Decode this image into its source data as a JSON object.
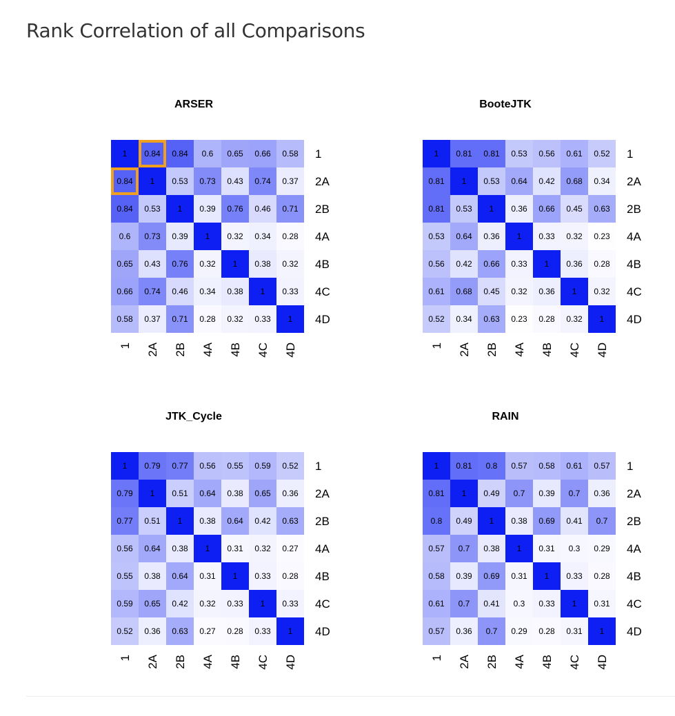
{
  "page": {
    "title": "Rank Correlation of all Comparisons"
  },
  "chart_data": [
    {
      "type": "heatmap",
      "title": "ARSER",
      "labels": [
        "1",
        "2A",
        "2B",
        "4A",
        "4B",
        "4C",
        "4D"
      ],
      "highlighted_cells": [
        [
          0,
          1
        ],
        [
          1,
          0
        ]
      ],
      "highlight_color": "#f0a020",
      "values": [
        [
          1,
          0.84,
          0.84,
          0.6,
          0.65,
          0.66,
          0.58
        ],
        [
          0.84,
          1,
          0.53,
          0.73,
          0.43,
          0.74,
          0.37
        ],
        [
          0.84,
          0.53,
          1,
          0.39,
          0.76,
          0.46,
          0.71
        ],
        [
          0.6,
          0.73,
          0.39,
          1,
          0.32,
          0.34,
          0.28
        ],
        [
          0.65,
          0.43,
          0.76,
          0.32,
          1,
          0.38,
          0.32
        ],
        [
          0.66,
          0.74,
          0.46,
          0.34,
          0.38,
          1,
          0.33
        ],
        [
          0.58,
          0.37,
          0.71,
          0.28,
          0.32,
          0.33,
          1
        ]
      ]
    },
    {
      "type": "heatmap",
      "title": "BooteJTK",
      "labels": [
        "1",
        "2A",
        "2B",
        "4A",
        "4B",
        "4C",
        "4D"
      ],
      "highlighted_cells": [],
      "values": [
        [
          1,
          0.81,
          0.81,
          0.53,
          0.56,
          0.61,
          0.52
        ],
        [
          0.81,
          1,
          0.53,
          0.64,
          0.42,
          0.68,
          0.34
        ],
        [
          0.81,
          0.53,
          1,
          0.36,
          0.66,
          0.45,
          0.63
        ],
        [
          0.53,
          0.64,
          0.36,
          1,
          0.33,
          0.32,
          0.23
        ],
        [
          0.56,
          0.42,
          0.66,
          0.33,
          1,
          0.36,
          0.28
        ],
        [
          0.61,
          0.68,
          0.45,
          0.32,
          0.36,
          1,
          0.32
        ],
        [
          0.52,
          0.34,
          0.63,
          0.23,
          0.28,
          0.32,
          1
        ]
      ]
    },
    {
      "type": "heatmap",
      "title": "JTK_Cycle",
      "labels": [
        "1",
        "2A",
        "2B",
        "4A",
        "4B",
        "4C",
        "4D"
      ],
      "highlighted_cells": [],
      "values": [
        [
          1,
          0.79,
          0.77,
          0.56,
          0.55,
          0.59,
          0.52
        ],
        [
          0.79,
          1,
          0.51,
          0.64,
          0.38,
          0.65,
          0.36
        ],
        [
          0.77,
          0.51,
          1,
          0.38,
          0.64,
          0.42,
          0.63
        ],
        [
          0.56,
          0.64,
          0.38,
          1,
          0.31,
          0.32,
          0.27
        ],
        [
          0.55,
          0.38,
          0.64,
          0.31,
          1,
          0.33,
          0.28
        ],
        [
          0.59,
          0.65,
          0.42,
          0.32,
          0.33,
          1,
          0.33
        ],
        [
          0.52,
          0.36,
          0.63,
          0.27,
          0.28,
          0.33,
          1
        ]
      ]
    },
    {
      "type": "heatmap",
      "title": "RAIN",
      "labels": [
        "1",
        "2A",
        "2B",
        "4A",
        "4B",
        "4C",
        "4D"
      ],
      "highlighted_cells": [],
      "values": [
        [
          1,
          0.81,
          0.8,
          0.57,
          0.58,
          0.61,
          0.57
        ],
        [
          0.81,
          1,
          0.49,
          0.7,
          0.39,
          0.7,
          0.36
        ],
        [
          0.8,
          0.49,
          1,
          0.38,
          0.69,
          0.41,
          0.7
        ],
        [
          0.57,
          0.7,
          0.38,
          1,
          0.31,
          0.3,
          0.29
        ],
        [
          0.58,
          0.39,
          0.69,
          0.31,
          1,
          0.33,
          0.28
        ],
        [
          0.61,
          0.7,
          0.41,
          0.3,
          0.33,
          1,
          0.31
        ],
        [
          0.57,
          0.36,
          0.7,
          0.29,
          0.28,
          0.31,
          1
        ]
      ]
    }
  ],
  "colors": {
    "high": "#0d1ff2",
    "low": "#ffffff",
    "text": "#000000"
  }
}
